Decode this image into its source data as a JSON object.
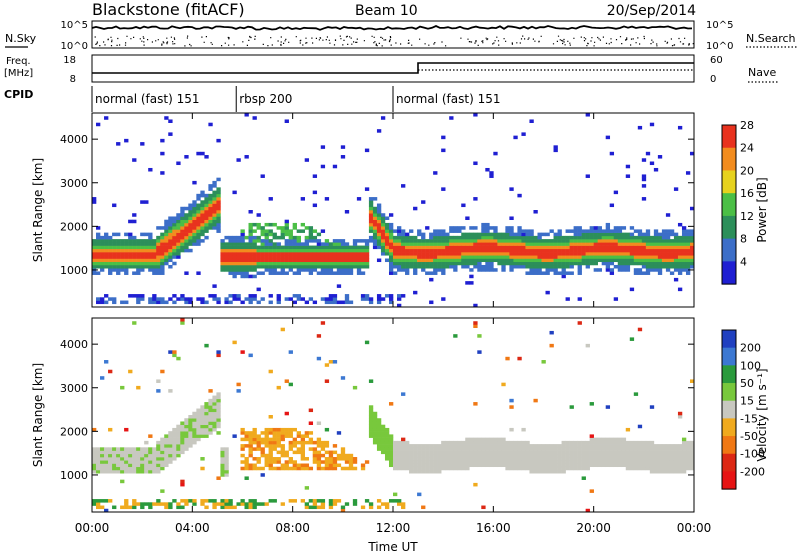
{
  "header": {
    "station": "Blackstone (fitACF)",
    "beam": "Beam 10",
    "date": "20/Sep/2014"
  },
  "noise_panel": {
    "left_label": "N.Sky",
    "right_label": "N.Search",
    "left_ticks": [
      "10^5",
      "10^0"
    ],
    "right_ticks": [
      "10^5",
      "10^0"
    ]
  },
  "freq_panel": {
    "left_label_1": "Freq.",
    "left_label_2": "[MHz]",
    "right_label": "Nave",
    "left_ticks": [
      "18",
      "8"
    ],
    "right_ticks": [
      "60",
      "0"
    ]
  },
  "cpid": {
    "label": "CPID",
    "segments": [
      {
        "name": "normal (fast) 151",
        "start": 0,
        "end": 5.75
      },
      {
        "name": "rbsp 200",
        "start": 5.75,
        "end": 12.0
      },
      {
        "name": "normal (fast) 151",
        "start": 12.0,
        "end": 24.0
      }
    ]
  },
  "chart_data": [
    {
      "type": "heatmap",
      "title": "",
      "parameter": "Power",
      "ylabel": "Slant Range [km]",
      "xlabel": "",
      "ylim": [
        150,
        4600
      ],
      "xlim": [
        0,
        24
      ],
      "yticks": [
        "1000",
        "2000",
        "3000",
        "4000"
      ],
      "colorbar_label": "Power [dB]",
      "colorbar_ticks": [
        "4",
        "8",
        "12",
        "16",
        "20",
        "24",
        "28"
      ],
      "colorbar_colors": [
        "#1f1fd2",
        "#3c6ec8",
        "#2c8f5a",
        "#4bbf46",
        "#e6d21e",
        "#f28c1e",
        "#e8321e"
      ],
      "features": [
        {
          "name": "main echo band",
          "range_km": [
            1000,
            1700
          ],
          "hours": [
            0,
            24
          ]
        },
        {
          "name": "rising echo 00-05 UT",
          "range_km": [
            1300,
            2900
          ],
          "hours": [
            2.5,
            5.2
          ]
        },
        {
          "name": "ionospheric trough",
          "range_km": [
            1100,
            1500
          ],
          "hours": [
            6.5,
            11
          ]
        },
        {
          "name": "near-range ground scatter",
          "range_km": [
            200,
            400
          ],
          "hours": [
            0,
            12
          ]
        }
      ]
    },
    {
      "type": "heatmap",
      "title": "",
      "parameter": "Velocity",
      "ylabel": "Slant Range [km]",
      "xlabel": "Time UT",
      "ylim": [
        150,
        4600
      ],
      "xlim": [
        0,
        24
      ],
      "yticks": [
        "1000",
        "2000",
        "3000",
        "4000"
      ],
      "xticks": [
        "00:00",
        "04:00",
        "08:00",
        "12:00",
        "16:00",
        "20:00",
        "00:00"
      ],
      "colorbar_label": "Velocity [m s⁻¹]",
      "colorbar_ticks": [
        "200",
        "100",
        "50",
        "15",
        "-15",
        "-50",
        "-100",
        "-200"
      ],
      "colorbar_colors": [
        "#2040c0",
        "#3c78d2",
        "#2a9a3c",
        "#78c83c",
        "#c8c8c0",
        "#f0aa1e",
        "#f07814",
        "#dc2814",
        "#e61414"
      ],
      "features": [
        {
          "name": "ground scatter (grey)",
          "range_km": [
            1100,
            1900
          ],
          "hours": [
            12,
            24
          ]
        },
        {
          "name": "negative velocities",
          "range_km": [
            1100,
            2200
          ],
          "hours": [
            6.5,
            11
          ]
        }
      ]
    }
  ]
}
